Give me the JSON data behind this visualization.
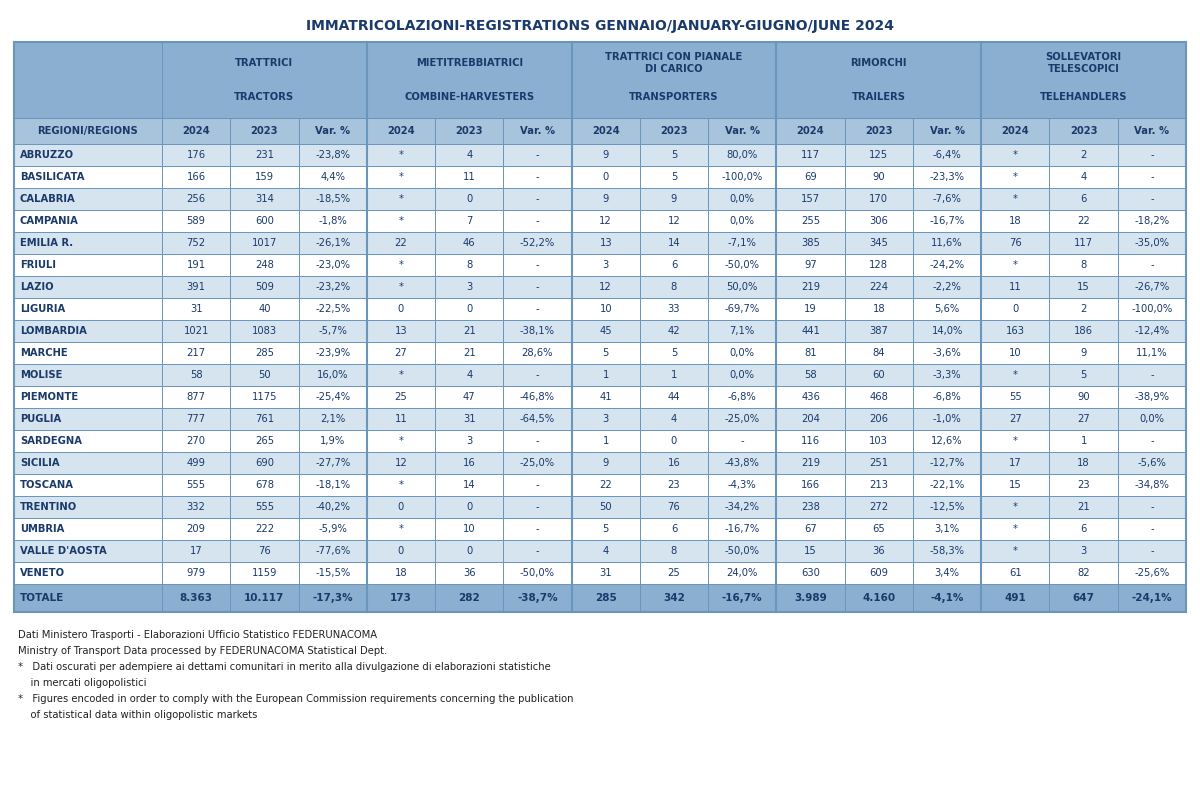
{
  "title": "IMMATRICOLAZIONI-REGISTRATIONS GENNAIO/JANUARY-GIUGNO/JUNE 2024",
  "rows": [
    [
      "ABRUZZO",
      "176",
      "231",
      "-23,8%",
      "*",
      "4",
      "-",
      "9",
      "5",
      "80,0%",
      "117",
      "125",
      "-6,4%",
      "*",
      "2",
      "-"
    ],
    [
      "BASILICATA",
      "166",
      "159",
      "4,4%",
      "*",
      "11",
      "-",
      "0",
      "5",
      "-100,0%",
      "69",
      "90",
      "-23,3%",
      "*",
      "4",
      "-"
    ],
    [
      "CALABRIA",
      "256",
      "314",
      "-18,5%",
      "*",
      "0",
      "-",
      "9",
      "9",
      "0,0%",
      "157",
      "170",
      "-7,6%",
      "*",
      "6",
      "-"
    ],
    [
      "CAMPANIA",
      "589",
      "600",
      "-1,8%",
      "*",
      "7",
      "-",
      "12",
      "12",
      "0,0%",
      "255",
      "306",
      "-16,7%",
      "18",
      "22",
      "-18,2%"
    ],
    [
      "EMILIA R.",
      "752",
      "1017",
      "-26,1%",
      "22",
      "46",
      "-52,2%",
      "13",
      "14",
      "-7,1%",
      "385",
      "345",
      "11,6%",
      "76",
      "117",
      "-35,0%"
    ],
    [
      "FRIULI",
      "191",
      "248",
      "-23,0%",
      "*",
      "8",
      "-",
      "3",
      "6",
      "-50,0%",
      "97",
      "128",
      "-24,2%",
      "*",
      "8",
      "-"
    ],
    [
      "LAZIO",
      "391",
      "509",
      "-23,2%",
      "*",
      "3",
      "-",
      "12",
      "8",
      "50,0%",
      "219",
      "224",
      "-2,2%",
      "11",
      "15",
      "-26,7%"
    ],
    [
      "LIGURIA",
      "31",
      "40",
      "-22,5%",
      "0",
      "0",
      "-",
      "10",
      "33",
      "-69,7%",
      "19",
      "18",
      "5,6%",
      "0",
      "2",
      "-100,0%"
    ],
    [
      "LOMBARDIA",
      "1021",
      "1083",
      "-5,7%",
      "13",
      "21",
      "-38,1%",
      "45",
      "42",
      "7,1%",
      "441",
      "387",
      "14,0%",
      "163",
      "186",
      "-12,4%"
    ],
    [
      "MARCHE",
      "217",
      "285",
      "-23,9%",
      "27",
      "21",
      "28,6%",
      "5",
      "5",
      "0,0%",
      "81",
      "84",
      "-3,6%",
      "10",
      "9",
      "11,1%"
    ],
    [
      "MOLISE",
      "58",
      "50",
      "16,0%",
      "*",
      "4",
      "-",
      "1",
      "1",
      "0,0%",
      "58",
      "60",
      "-3,3%",
      "*",
      "5",
      "-"
    ],
    [
      "PIEMONTE",
      "877",
      "1175",
      "-25,4%",
      "25",
      "47",
      "-46,8%",
      "41",
      "44",
      "-6,8%",
      "436",
      "468",
      "-6,8%",
      "55",
      "90",
      "-38,9%"
    ],
    [
      "PUGLIA",
      "777",
      "761",
      "2,1%",
      "11",
      "31",
      "-64,5%",
      "3",
      "4",
      "-25,0%",
      "204",
      "206",
      "-1,0%",
      "27",
      "27",
      "0,0%"
    ],
    [
      "SARDEGNA",
      "270",
      "265",
      "1,9%",
      "*",
      "3",
      "-",
      "1",
      "0",
      "-",
      "116",
      "103",
      "12,6%",
      "*",
      "1",
      "-"
    ],
    [
      "SICILIA",
      "499",
      "690",
      "-27,7%",
      "12",
      "16",
      "-25,0%",
      "9",
      "16",
      "-43,8%",
      "219",
      "251",
      "-12,7%",
      "17",
      "18",
      "-5,6%"
    ],
    [
      "TOSCANA",
      "555",
      "678",
      "-18,1%",
      "*",
      "14",
      "-",
      "22",
      "23",
      "-4,3%",
      "166",
      "213",
      "-22,1%",
      "15",
      "23",
      "-34,8%"
    ],
    [
      "TRENTINO",
      "332",
      "555",
      "-40,2%",
      "0",
      "0",
      "-",
      "50",
      "76",
      "-34,2%",
      "238",
      "272",
      "-12,5%",
      "*",
      "21",
      "-"
    ],
    [
      "UMBRIA",
      "209",
      "222",
      "-5,9%",
      "*",
      "10",
      "-",
      "5",
      "6",
      "-16,7%",
      "67",
      "65",
      "3,1%",
      "*",
      "6",
      "-"
    ],
    [
      "VALLE D'AOSTA",
      "17",
      "76",
      "-77,6%",
      "0",
      "0",
      "-",
      "4",
      "8",
      "-50,0%",
      "15",
      "36",
      "-58,3%",
      "*",
      "3",
      "-"
    ],
    [
      "VENETO",
      "979",
      "1159",
      "-15,5%",
      "18",
      "36",
      "-50,0%",
      "31",
      "25",
      "24,0%",
      "630",
      "609",
      "3,4%",
      "61",
      "82",
      "-25,6%"
    ]
  ],
  "totale_row": [
    "TOTALE",
    "8.363",
    "10.117",
    "-17,3%",
    "173",
    "282",
    "-38,7%",
    "285",
    "342",
    "-16,7%",
    "3.989",
    "4.160",
    "-4,1%",
    "491",
    "647",
    "-24,1%"
  ],
  "col_header": [
    "REGIONI/REGIONS",
    "2024",
    "2023",
    "Var. %",
    "2024",
    "2023",
    "Var. %",
    "2024",
    "2023",
    "Var. %",
    "2024",
    "2023",
    "Var. %",
    "2024",
    "2023",
    "Var. %"
  ],
  "group_labels_it": [
    "TRATTRICI",
    "MIETITREBBIATRICI",
    "TRATTRICI CON PIANALE\nDI CARICO",
    "RIMORCHI",
    "SOLLEVATORI\nTELESCOPICI"
  ],
  "group_labels_en": [
    "TRACTORS",
    "COMBINE-HARVESTERS",
    "TRANSPORTERS",
    "TRAILERS",
    "TELEHANDLERS"
  ],
  "footnotes": [
    "Dati Ministero Trasporti - Elaborazioni Ufficio Statistico FEDERUNACOMA",
    "Ministry of Transport Data processed by FEDERUNACOMA Statistical Dept.",
    "*   Dati oscurati per adempiere ai dettami comunitari in merito alla divulgazione di elaborazioni statistiche",
    "    in mercati oligopolistici",
    "*   Figures encoded in order to comply with the European Commission requirements concerning the publication",
    "    of statistical data within oligopolistic markets"
  ],
  "header_bg": "#8aafd0",
  "subheader_bg": "#a8c4dc",
  "row_bg_even": "#d6e4f0",
  "row_bg_odd": "#ffffff",
  "totale_bg": "#8aafd0",
  "border_color": "#6a96bc",
  "text_color": "#1a3a6b",
  "title_color": "#1a3a6b"
}
